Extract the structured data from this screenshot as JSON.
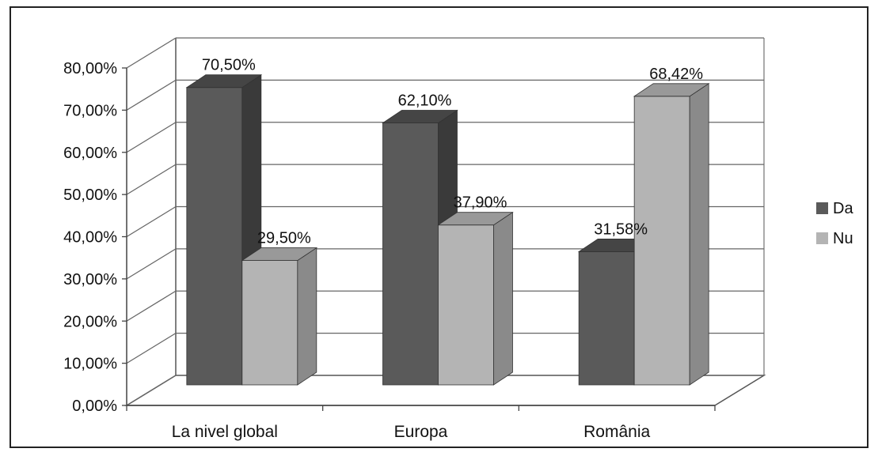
{
  "chart_data": {
    "type": "bar",
    "variant": "3d-clustered-column",
    "categories": [
      "La nivel global",
      "Europa",
      "România"
    ],
    "series": [
      {
        "name": "Da",
        "values": [
          70.5,
          62.1,
          31.58
        ],
        "labels": [
          "70,50%",
          "62,10%",
          "31,58%"
        ],
        "color": "#5a5a5a"
      },
      {
        "name": "Nu",
        "values": [
          29.5,
          37.9,
          68.42
        ],
        "labels": [
          "29,50%",
          "37,90%",
          "68,42%"
        ],
        "color": "#b4b4b4"
      }
    ],
    "y_ticks": [
      "0,00%",
      "10,00%",
      "20,00%",
      "30,00%",
      "40,00%",
      "50,00%",
      "60,00%",
      "70,00%",
      "80,00%"
    ],
    "ylim": [
      0,
      80
    ],
    "grid": true,
    "legend_position": "right"
  }
}
